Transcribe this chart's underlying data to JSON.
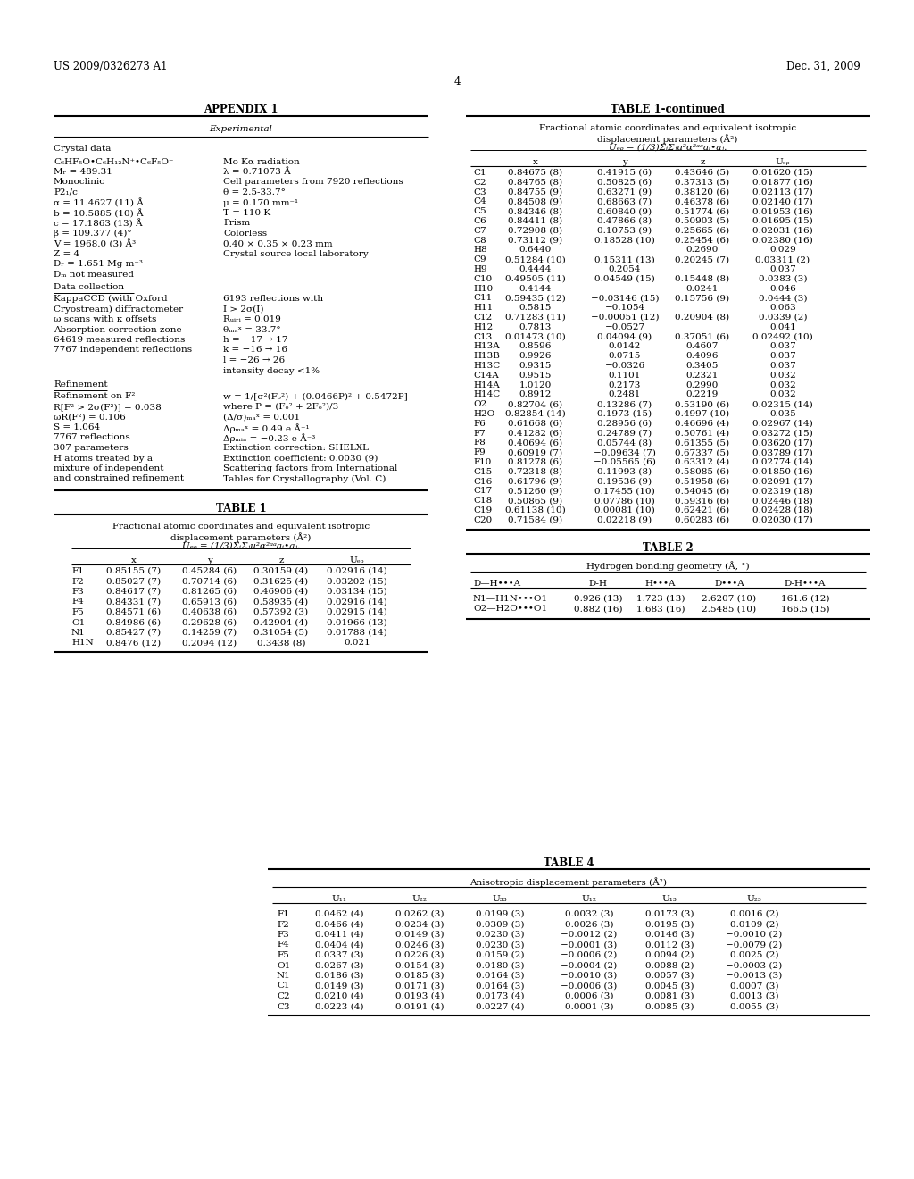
{
  "page_header_left": "US 2009/0326273 A1",
  "page_header_right": "Dec. 31, 2009",
  "page_number": "4",
  "appendix_title": "APPENDIX 1",
  "experimental_subtitle": "Experimental",
  "crystal_data_label": "Crystal data",
  "crystal_data_left": [
    "C₆HF₅O•C₆H₁₂N⁺•C₆F₅O⁻",
    "Mᵣ = 489.31",
    "Monoclinic",
    "P2₁/c",
    "α = 11.4627 (11) Å",
    "b = 10.5885 (10) Å",
    "c = 17.1863 (13) Å",
    "β = 109.377 (4)°",
    "V = 1968.0 (3) Å³",
    "Z = 4",
    "Dᵣ = 1.651 Mg m⁻³",
    "Dₘ not measured"
  ],
  "crystal_data_right": [
    "Mo Kα radiation",
    "λ = 0.71073 Å",
    "Cell parameters from 7920 reflections",
    "θ = 2.5-33.7°",
    "μ = 0.170 mm⁻¹",
    "T = 110 K",
    "Prism",
    "Colorless",
    "0.40 × 0.35 × 0.23 mm",
    "Crystal source local laboratory"
  ],
  "data_collection_left": [
    "KappaCCD (with Oxford",
    "Cryostream) diffractometer",
    "ω scans with κ offsets",
    "Absorption correction zone",
    "64619 measured reflections",
    "7767 independent reflections"
  ],
  "data_collection_right": [
    "6193 reflections with",
    "I > 2σ(I)",
    "Rᵤᵢᵣᵢ = 0.019",
    "θₘₐˣ = 33.7°",
    "h = −17 → 17",
    "k = −16 → 16",
    "l = −26 → 26",
    "intensity decay <1%"
  ],
  "refinement_left": [
    "Refinement on F²",
    "R[F² > 2σ(F²)] = 0.038",
    "ωR(F²) = 0.106",
    "S = 1.064",
    "7767 reflections",
    "307 parameters",
    "H atoms treated by a",
    "mixture of independent",
    "and constrained refinement"
  ],
  "refinement_right": [
    "w = 1/[σ²(Fₒ²) + (0.0466P)² + 0.5472P]",
    "where P = (Fₒ² + 2Fₒ²)/3",
    "(Δ/σ)ₘₐˣ = 0.001",
    "Δρₘₐˣ = 0.49 e Å⁻¹",
    "Δρₘᵢₙ = −0.23 e Å⁻³",
    "Extinction correction: SHELXL",
    "Extinction coefficient: 0.0030 (9)",
    "Scattering factors from International",
    "Tables for Crystallography (Vol. C)"
  ],
  "table1_data": [
    [
      "F1",
      "0.85155 (7)",
      "0.45284 (6)",
      "0.30159 (4)",
      "0.02916 (14)"
    ],
    [
      "F2",
      "0.85027 (7)",
      "0.70714 (6)",
      "0.31625 (4)",
      "0.03202 (15)"
    ],
    [
      "F3",
      "0.84617 (7)",
      "0.81265 (6)",
      "0.46906 (4)",
      "0.03134 (15)"
    ],
    [
      "F4",
      "0.84331 (7)",
      "0.65913 (6)",
      "0.58935 (4)",
      "0.02916 (14)"
    ],
    [
      "F5",
      "0.84571 (6)",
      "0.40638 (6)",
      "0.57392 (3)",
      "0.02915 (14)"
    ],
    [
      "O1",
      "0.84986 (6)",
      "0.29628 (6)",
      "0.42904 (4)",
      "0.01966 (13)"
    ],
    [
      "N1",
      "0.85427 (7)",
      "0.14259 (7)",
      "0.31054 (5)",
      "0.01788 (14)"
    ],
    [
      "H1N",
      "0.8476 (12)",
      "0.2094 (12)",
      "0.3438 (8)",
      "0.021"
    ]
  ],
  "table1cont_data": [
    [
      "C1",
      "0.84675 (8)",
      "0.41915 (6)",
      "0.43646 (5)",
      "0.01620 (15)"
    ],
    [
      "C2",
      "0.84765 (8)",
      "0.50825 (6)",
      "0.37313 (5)",
      "0.01877 (16)"
    ],
    [
      "C3",
      "0.84755 (9)",
      "0.63271 (9)",
      "0.38120 (6)",
      "0.02113 (17)"
    ],
    [
      "C4",
      "0.84508 (9)",
      "0.68663 (7)",
      "0.46378 (6)",
      "0.02140 (17)"
    ],
    [
      "C5",
      "0.84346 (8)",
      "0.60840 (9)",
      "0.51774 (6)",
      "0.01953 (16)"
    ],
    [
      "C6",
      "0.84411 (8)",
      "0.47866 (8)",
      "0.50903 (5)",
      "0.01695 (15)"
    ],
    [
      "C7",
      "0.72908 (8)",
      "0.10753 (9)",
      "0.25665 (6)",
      "0.02031 (16)"
    ],
    [
      "C8",
      "0.73112 (9)",
      "0.18528 (10)",
      "0.25454 (6)",
      "0.02380 (16)"
    ],
    [
      "H8",
      "0.6440",
      "",
      "0.2690",
      "0.029"
    ],
    [
      "C9",
      "0.51284 (10)",
      "0.15311 (13)",
      "0.20245 (7)",
      "0.03311 (2)"
    ],
    [
      "H9",
      "0.4444",
      "0.2054",
      "",
      "0.037"
    ],
    [
      "C10",
      "0.49505 (11)",
      "0.04549 (15)",
      "0.15448 (8)",
      "0.0383 (3)"
    ],
    [
      "H10",
      "0.4144",
      "",
      "0.0241",
      "0.046"
    ],
    [
      "C11",
      "0.59435 (12)",
      "−0.03146 (15)",
      "0.15756 (9)",
      "0.0444 (3)"
    ],
    [
      "H11",
      "0.5815",
      "−0.1054",
      "",
      "0.063"
    ],
    [
      "C12",
      "0.71283 (11)",
      "−0.00051 (12)",
      "0.20904 (8)",
      "0.0339 (2)"
    ],
    [
      "H12",
      "0.7813",
      "−0.0527",
      "",
      "0.041"
    ],
    [
      "C13",
      "0.01473 (10)",
      "0.04094 (9)",
      "0.37051 (6)",
      "0.02492 (10)"
    ],
    [
      "H13A",
      "0.8596",
      "0.0142",
      "0.4607",
      "0.037"
    ],
    [
      "H13B",
      "0.9926",
      "0.0715",
      "0.4096",
      "0.037"
    ],
    [
      "H13C",
      "0.9315",
      "−0.0326",
      "0.3405",
      "0.037"
    ],
    [
      "C14A",
      "0.9515",
      "0.1101",
      "0.2321",
      "0.032"
    ],
    [
      "H14A",
      "1.0120",
      "0.2173",
      "0.2990",
      "0.032"
    ],
    [
      "H14C",
      "0.8912",
      "0.2481",
      "0.2219",
      "0.032"
    ],
    [
      "O2",
      "0.82704 (6)",
      "0.13286 (7)",
      "0.53190 (6)",
      "0.02315 (14)"
    ],
    [
      "H2O",
      "0.82854 (14)",
      "0.1973 (15)",
      "0.4997 (10)",
      "0.035"
    ],
    [
      "F6",
      "0.61668 (6)",
      "0.28956 (6)",
      "0.46696 (4)",
      "0.02967 (14)"
    ],
    [
      "F7",
      "0.41282 (6)",
      "0.24789 (7)",
      "0.50761 (4)",
      "0.03272 (15)"
    ],
    [
      "F8",
      "0.40694 (6)",
      "0.05744 (8)",
      "0.61355 (5)",
      "0.03620 (17)"
    ],
    [
      "F9",
      "0.60919 (7)",
      "−0.09634 (7)",
      "0.67337 (5)",
      "0.03789 (17)"
    ],
    [
      "F10",
      "0.81278 (6)",
      "−0.05565 (6)",
      "0.63312 (4)",
      "0.02774 (14)"
    ],
    [
      "C15",
      "0.72318 (8)",
      "0.11993 (8)",
      "0.58085 (6)",
      "0.01850 (16)"
    ],
    [
      "C16",
      "0.61796 (9)",
      "0.19536 (9)",
      "0.51958 (6)",
      "0.02091 (17)"
    ],
    [
      "C17",
      "0.51260 (9)",
      "0.17455 (10)",
      "0.54045 (6)",
      "0.02319 (18)"
    ],
    [
      "C18",
      "0.50865 (9)",
      "0.07786 (10)",
      "0.59316 (6)",
      "0.02446 (18)"
    ],
    [
      "C19",
      "0.61138 (10)",
      "0.00081 (10)",
      "0.62421 (6)",
      "0.02428 (18)"
    ],
    [
      "C20",
      "0.71584 (9)",
      "0.02218 (9)",
      "0.60283 (6)",
      "0.02030 (17)"
    ]
  ],
  "table2_subtitle": "Hydrogen bonding geometry (Å, °)",
  "table2_cols": [
    "D—H•••A",
    "D-H",
    "H•••A",
    "D•••A",
    "D-H•••A"
  ],
  "table2_data": [
    [
      "N1—H1N•••O1",
      "0.926 (13)",
      "1.723 (13)",
      "2.6207 (10)",
      "161.6 (12)"
    ],
    [
      "O2—H2O•••O1",
      "0.882 (16)",
      "1.683 (16)",
      "2.5485 (10)",
      "166.5 (15)"
    ]
  ],
  "table4_subtitle": "Anisotropic displacement parameters (Å²)",
  "table4_cols": [
    "",
    "U₁₁",
    "U₂₂",
    "U₃₃",
    "U₁₂",
    "U₁₃",
    "U₂₃"
  ],
  "table4_data": [
    [
      "F1",
      "0.0462 (4)",
      "0.0262 (3)",
      "0.0199 (3)",
      "0.0032 (3)",
      "0.0173 (3)",
      "0.0016 (2)"
    ],
    [
      "F2",
      "0.0466 (4)",
      "0.0234 (3)",
      "0.0309 (3)",
      "0.0026 (3)",
      "0.0195 (3)",
      "0.0109 (2)"
    ],
    [
      "F3",
      "0.0411 (4)",
      "0.0149 (3)",
      "0.0230 (3)",
      "−0.0012 (2)",
      "0.0146 (3)",
      "−0.0010 (2)"
    ],
    [
      "F4",
      "0.0404 (4)",
      "0.0246 (3)",
      "0.0230 (3)",
      "−0.0001 (3)",
      "0.0112 (3)",
      "−0.0079 (2)"
    ],
    [
      "F5",
      "0.0337 (3)",
      "0.0226 (3)",
      "0.0159 (2)",
      "−0.0006 (2)",
      "0.0094 (2)",
      "0.0025 (2)"
    ],
    [
      "O1",
      "0.0267 (3)",
      "0.0154 (3)",
      "0.0180 (3)",
      "−0.0004 (2)",
      "0.0088 (2)",
      "−0.0003 (2)"
    ],
    [
      "N1",
      "0.0186 (3)",
      "0.0185 (3)",
      "0.0164 (3)",
      "−0.0010 (3)",
      "0.0057 (3)",
      "−0.0013 (3)"
    ],
    [
      "C1",
      "0.0149 (3)",
      "0.0171 (3)",
      "0.0164 (3)",
      "−0.0006 (3)",
      "0.0045 (3)",
      "0.0007 (3)"
    ],
    [
      "C2",
      "0.0210 (4)",
      "0.0193 (4)",
      "0.0173 (4)",
      "0.0006 (3)",
      "0.0081 (3)",
      "0.0013 (3)"
    ],
    [
      "C3",
      "0.0223 (4)",
      "0.0191 (4)",
      "0.0227 (4)",
      "0.0001 (3)",
      "0.0085 (3)",
      "0.0055 (3)"
    ]
  ]
}
